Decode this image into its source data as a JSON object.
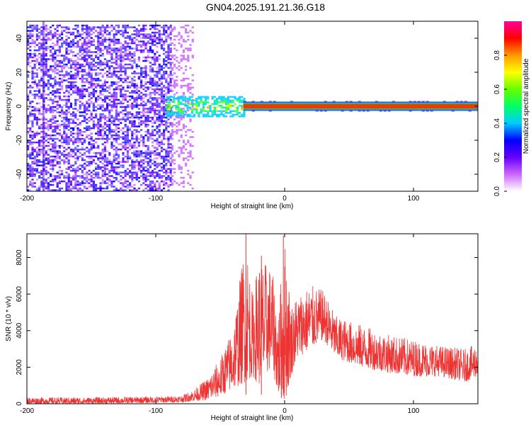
{
  "title": "GN04.2025.191.21.36.G18",
  "chart_data": [
    {
      "type": "heatmap",
      "xlabel": "Height of straight line (km)",
      "ylabel": "Frequency (Hz)",
      "xlim": [
        -200,
        150
      ],
      "ylim": [
        -50,
        50
      ],
      "x_ticks": [
        -200,
        -100,
        0,
        100
      ],
      "y_ticks": [
        -40,
        -20,
        0,
        20,
        40
      ],
      "colorbar": {
        "label": "Normalized spectral amplitude",
        "range": [
          0.0,
          1.0
        ],
        "ticks": [
          "0.0",
          "0.2",
          "0.4",
          "0.6",
          "0.8"
        ],
        "colors": [
          "#ffffff",
          "#cc66ff",
          "#6600ff",
          "#0000ff",
          "#00ccff",
          "#00ff66",
          "#66ff00",
          "#ffff00",
          "#ff9900",
          "#ff0000",
          "#ff0099"
        ]
      },
      "regions": [
        {
          "x_range": [
            -200,
            -88
          ],
          "freq_range": [
            -50,
            48
          ],
          "amplitude": 0.15,
          "description_color": "#6633ff"
        },
        {
          "x_range": [
            -88,
            -72
          ],
          "freq_range": [
            -50,
            48
          ],
          "amplitude": 0.05,
          "description_color": "#d9c2ff"
        },
        {
          "x_range": [
            -92,
            -32
          ],
          "freq_range": [
            -6,
            6
          ],
          "amplitude": 0.5,
          "description_color": "#00cc99"
        },
        {
          "x_range": [
            -32,
            150
          ],
          "freq_range": [
            -1.5,
            1.5
          ],
          "amplitude": 0.95,
          "description_color": "#ff3300"
        }
      ]
    },
    {
      "type": "line",
      "xlabel": "Height of straight line (km)",
      "ylabel": "SNR (10 * v/v)",
      "xlim": [
        -200,
        150
      ],
      "ylim": [
        0,
        9300
      ],
      "x_ticks": [
        -200,
        -100,
        0,
        100
      ],
      "y_ticks": [
        0,
        2000,
        4000,
        6000,
        8000
      ],
      "color": "#ee3333",
      "envelope": {
        "x": [
          -200,
          -150,
          -100,
          -80,
          -70,
          -60,
          -50,
          -40,
          -30,
          -25,
          -20,
          -10,
          -5,
          0,
          5,
          10,
          20,
          30,
          40,
          60,
          80,
          100,
          120,
          140,
          150
        ],
        "min": [
          0,
          0,
          50,
          80,
          150,
          200,
          400,
          800,
          1200,
          1500,
          1000,
          2000,
          500,
          0,
          1500,
          2500,
          3000,
          3500,
          2500,
          2000,
          1700,
          1500,
          1500,
          1200,
          1500
        ],
        "max": [
          350,
          350,
          400,
          450,
          800,
          1400,
          2500,
          4200,
          9300,
          6000,
          8000,
          7500,
          5000,
          9200,
          5500,
          6000,
          6500,
          6200,
          4800,
          4300,
          3800,
          3500,
          3200,
          3000,
          3300
        ]
      },
      "spikes": [
        {
          "x": -30,
          "y": 9300
        },
        {
          "x": -18,
          "y": 8100
        },
        {
          "x": -1,
          "y": 9200
        }
      ]
    }
  ]
}
